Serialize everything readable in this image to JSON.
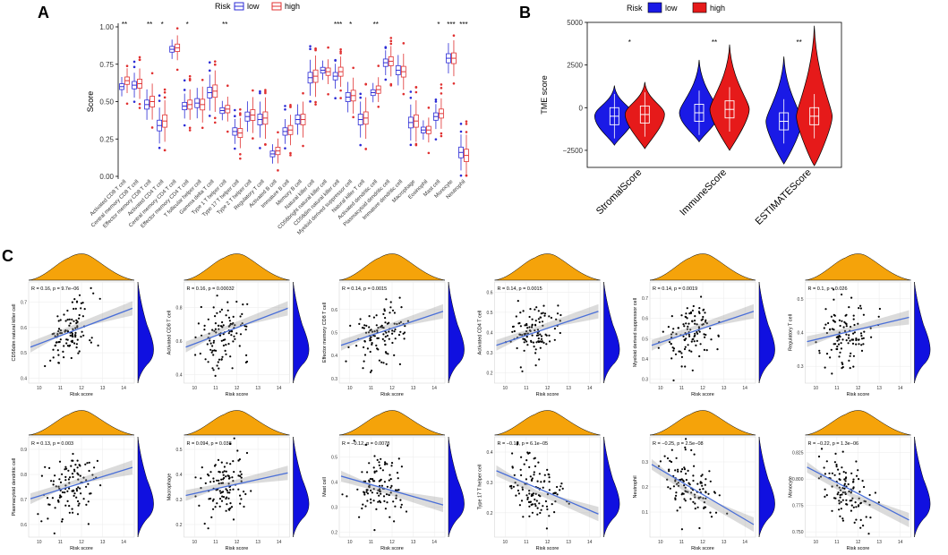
{
  "figure_labels": {
    "A": "A",
    "B": "B",
    "C": "C"
  },
  "chart_data": [
    {
      "panel": "A",
      "type": "box",
      "title": "",
      "legend_title": "Risk",
      "legend": [
        {
          "name": "low",
          "color": "#2b2bd6"
        },
        {
          "name": "high",
          "color": "#e03030"
        }
      ],
      "ylabel": "Score",
      "xlabel": "",
      "ylim": [
        0,
        1
      ],
      "yticks": [
        "0.00",
        "0.25",
        "0.50",
        "0.75",
        "1.00"
      ],
      "categories": [
        "Activated CD8 T cell",
        "Central memory CD8 T cell",
        "Effector memory CD8 T cell",
        "Activated CD4 T cell",
        "Central memory CD4 T cell",
        "Effector memory CD4 T cell",
        "T follicular helper cell",
        "Gamma delta T cell",
        "Type 1 T helper cell",
        "Type 17 T helper cell",
        "Type 2 T helper cell",
        "Regulatory T cell",
        "Activated B cell",
        "Immature B cell",
        "Memory B cell",
        "Natural killer cell",
        "CD56bright natural killer cell",
        "CD56dim natural killer cell",
        "Myeloid derived suppressor cell",
        "Natural killer T cell",
        "Activated dendritic cell",
        "Plasmacytoid dendritic cell",
        "Immature dendritic cell",
        "Macrophage",
        "Eosinophil",
        "Mast cell",
        "Monocyte",
        "Neutrophil"
      ],
      "significance": [
        "**",
        "",
        "**",
        "*",
        "",
        "*",
        "",
        "",
        "**",
        "",
        "",
        "",
        "",
        "",
        "",
        "",
        "",
        "***",
        "*",
        "",
        "**",
        "",
        "",
        "",
        "",
        "*",
        "***",
        "***"
      ],
      "series": [
        {
          "name": "low",
          "median": [
            0.6,
            0.61,
            0.48,
            0.34,
            0.85,
            0.47,
            0.49,
            0.56,
            0.44,
            0.3,
            0.4,
            0.38,
            0.15,
            0.3,
            0.38,
            0.66,
            0.71,
            0.67,
            0.53,
            0.38,
            0.56,
            0.76,
            0.71,
            0.36,
            0.31,
            0.4,
            0.79,
            0.16
          ]
        },
        {
          "name": "high",
          "median": [
            0.64,
            0.62,
            0.5,
            0.37,
            0.86,
            0.48,
            0.48,
            0.57,
            0.45,
            0.29,
            0.41,
            0.39,
            0.17,
            0.31,
            0.38,
            0.67,
            0.7,
            0.7,
            0.54,
            0.39,
            0.58,
            0.77,
            0.7,
            0.37,
            0.31,
            0.42,
            0.79,
            0.14
          ]
        }
      ]
    },
    {
      "panel": "B",
      "type": "violin",
      "legend_title": "Risk",
      "legend": [
        {
          "name": "low",
          "color": "#1a1ae6"
        },
        {
          "name": "high",
          "color": "#e61a1a"
        }
      ],
      "ylabel": "TME score",
      "ylim": [
        -3500,
        5000
      ],
      "yticks": [
        "5000",
        "2500",
        "0",
        "−2500"
      ],
      "categories": [
        "StromalScore",
        "ImmuneScore",
        "ESTIMATEScore"
      ],
      "significance": [
        "*",
        "**",
        "**"
      ],
      "series": [
        {
          "name": "low",
          "median": [
            -500,
            -300,
            -800
          ]
        },
        {
          "name": "high",
          "median": [
            -400,
            -100,
            -500
          ]
        }
      ]
    },
    {
      "panel": "C",
      "type": "scatter",
      "xlabel": "Risk score",
      "xlim": [
        9.5,
        14.5
      ],
      "xticks": [
        "10",
        "11",
        "12",
        "13",
        "14"
      ],
      "plots": [
        {
          "ylabel": "CD56dim natural killer cell",
          "annotation": "R = 0.16, p = 9.7e−06",
          "r": 0.16,
          "ylim": [
            0.38,
            0.78
          ],
          "yticks": [
            "0.7",
            "0.6",
            "0.5",
            "0.4"
          ]
        },
        {
          "ylabel": "Activated CD8 T cell",
          "annotation": "R = 0.16, p = 0.00032",
          "r": 0.16,
          "ylim": [
            0.35,
            0.95
          ],
          "yticks": [
            "0.8",
            "0.6",
            "0.4"
          ]
        },
        {
          "ylabel": "Effector memory CD8 T cell",
          "annotation": "R = 0.14, p = 0.0015",
          "r": 0.14,
          "ylim": [
            0.28,
            0.72
          ],
          "yticks": [
            "0.6",
            "0.5",
            "0.4",
            "0.3"
          ]
        },
        {
          "ylabel": "Activated CD4 T cell",
          "annotation": "R = 0.14, p = 0.0015",
          "r": 0.14,
          "ylim": [
            0.15,
            0.65
          ],
          "yticks": [
            "0.6",
            "0.5",
            "0.4",
            "0.3",
            "0.2"
          ]
        },
        {
          "ylabel": "Myeloid derived suppressor cell",
          "annotation": "R = 0.14, p = 0.0019",
          "r": 0.14,
          "ylim": [
            0.28,
            0.78
          ],
          "yticks": [
            "0.7",
            "0.6",
            "0.5",
            "0.4",
            "0.3"
          ]
        },
        {
          "ylabel": "Regulatory T cell",
          "annotation": "R = 0.1, p = 0.026",
          "r": 0.1,
          "ylim": [
            0.25,
            0.55
          ],
          "yticks": [
            "0.5",
            "0.4",
            "0.3"
          ]
        },
        {
          "ylabel": "Plasmacytoid dendritic cell",
          "annotation": "R = 0.13, p = 0.003",
          "r": 0.13,
          "ylim": [
            0.55,
            0.95
          ],
          "yticks": [
            "0.9",
            "0.8",
            "0.7",
            "0.6"
          ]
        },
        {
          "ylabel": "Macrophage",
          "annotation": "R = 0.094, p = 0.038",
          "r": 0.094,
          "ylim": [
            0.15,
            0.55
          ],
          "yticks": [
            "0.5",
            "0.4",
            "0.3",
            "0.2"
          ]
        },
        {
          "ylabel": "Mast cell",
          "annotation": "R = −0.12, p = 0.0078",
          "r": -0.12,
          "ylim": [
            0.18,
            0.58
          ],
          "yticks": [
            "0.5",
            "0.4",
            "0.3",
            "0.2"
          ]
        },
        {
          "ylabel": "Type 17 T helper cell",
          "annotation": "R = −0.18, p = 6.1e−05",
          "r": -0.18,
          "ylim": [
            0.12,
            0.45
          ],
          "yticks": [
            "0.4",
            "0.3",
            "0.2"
          ]
        },
        {
          "ylabel": "Neutrophil",
          "annotation": "R = −0.25, p = 2.5e−08",
          "r": -0.25,
          "ylim": [
            0.0,
            0.4
          ],
          "yticks": [
            "0.3",
            "0.2",
            "0.1"
          ]
        },
        {
          "ylabel": "Monocyte",
          "annotation": "R = −0.22, p = 1.3e−06",
          "r": -0.22,
          "ylim": [
            0.745,
            0.84
          ],
          "yticks": [
            "0.825",
            "0.800",
            "0.775",
            "0.750"
          ]
        }
      ]
    }
  ]
}
